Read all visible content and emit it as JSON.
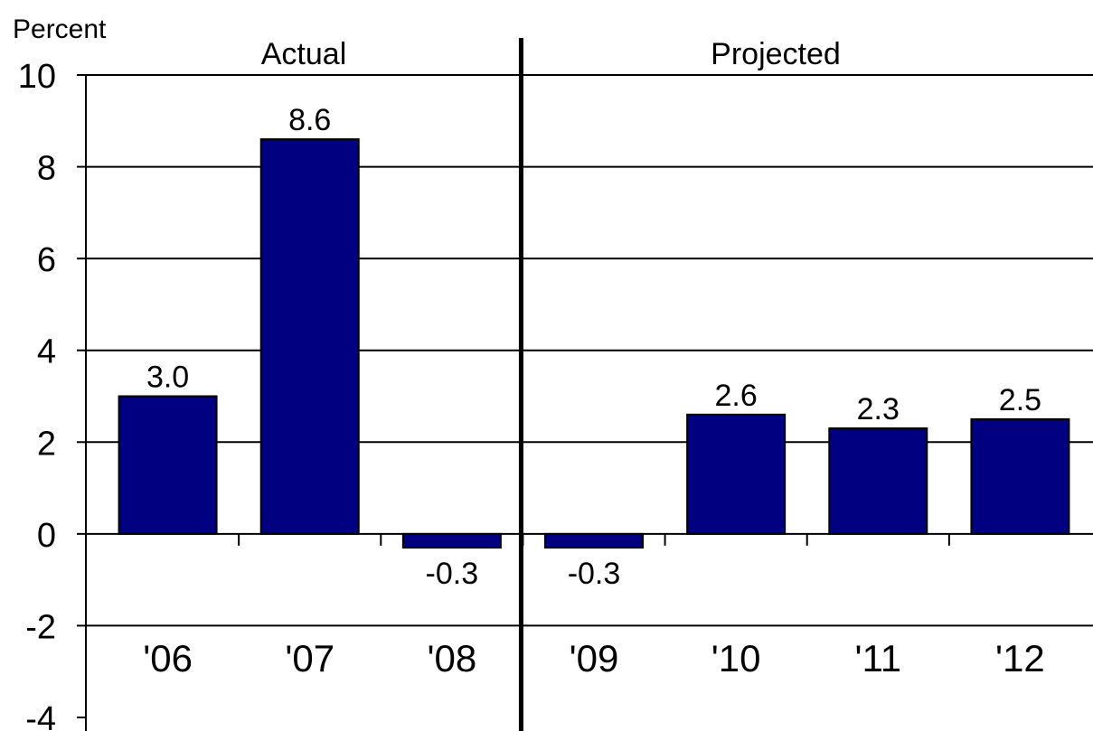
{
  "chart_data": {
    "type": "bar",
    "ylabel": "Percent",
    "categories": [
      "'06",
      "'07",
      "'08",
      "'09",
      "'10",
      "'11",
      "'12"
    ],
    "values": [
      3.0,
      8.6,
      -0.3,
      -0.3,
      2.6,
      2.3,
      2.5
    ],
    "value_labels": [
      "3.0",
      "8.6",
      "-0.3",
      "-0.3",
      "2.6",
      "2.3",
      "2.5"
    ],
    "ylim": [
      -4,
      10
    ],
    "yticks": [
      -4,
      -2,
      0,
      2,
      4,
      6,
      8,
      10
    ],
    "ytick_labels": [
      "-4",
      "-2",
      "0",
      "2",
      "4",
      "6",
      "8",
      "10"
    ],
    "grid": true,
    "bar_color": "#000080",
    "sections": [
      {
        "label": "Actual",
        "categories": [
          "'06",
          "'07",
          "'08"
        ]
      },
      {
        "label": "Projected",
        "categories": [
          "'09",
          "'10",
          "'11",
          "'12"
        ]
      }
    ]
  }
}
